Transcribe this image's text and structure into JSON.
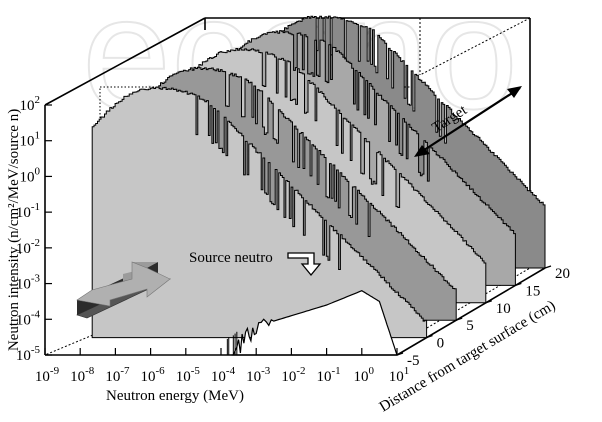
{
  "watermark": "econo",
  "chart_data": {
    "type": "area",
    "title": "",
    "xlabel": "Neutron energy (MeV)",
    "ylabel": "Neutron intensity (n/cm²/MeV/source n)",
    "zlabel": "Distance from target surface (cm)",
    "x_scale": "log",
    "y_scale": "log",
    "x_ticks": [
      {
        "mantissa": "10",
        "exp": "-9"
      },
      {
        "mantissa": "10",
        "exp": "-8"
      },
      {
        "mantissa": "10",
        "exp": "-7"
      },
      {
        "mantissa": "10",
        "exp": "-6"
      },
      {
        "mantissa": "10",
        "exp": "-5"
      },
      {
        "mantissa": "10",
        "exp": "-4"
      },
      {
        "mantissa": "10",
        "exp": "-3"
      },
      {
        "mantissa": "10",
        "exp": "-2"
      },
      {
        "mantissa": "10",
        "exp": "-1"
      },
      {
        "mantissa": "10",
        "exp": "0"
      },
      {
        "mantissa": "10",
        "exp": "1"
      }
    ],
    "y_ticks": [
      {
        "mantissa": "10",
        "exp": "2"
      },
      {
        "mantissa": "10",
        "exp": "1"
      },
      {
        "mantissa": "10",
        "exp": "0"
      },
      {
        "mantissa": "10",
        "exp": "-1"
      },
      {
        "mantissa": "10",
        "exp": "-2"
      },
      {
        "mantissa": "10",
        "exp": "-3"
      },
      {
        "mantissa": "10",
        "exp": "-4"
      },
      {
        "mantissa": "10",
        "exp": "-5"
      }
    ],
    "z_ticks": [
      "-5",
      "0",
      "5",
      "10",
      "15",
      "20"
    ],
    "xlim_exp": [
      -9,
      1
    ],
    "ylim_exp": [
      -5,
      2
    ],
    "zlim": [
      -5,
      20
    ],
    "annotations": [
      {
        "text": "Source neutro",
        "target": "source"
      },
      {
        "text": "Target",
        "target": "target"
      }
    ],
    "series": [
      {
        "z": 0,
        "color": "#c6c6c6",
        "peak_log_e": -6.7,
        "peak_log_i": 2.0,
        "logi_at_10MeV": -4.6
      },
      {
        "z": 5,
        "color": "#989898",
        "peak_log_e": -6.3,
        "peak_log_i": 2.05,
        "logi_at_10MeV": -4.2
      },
      {
        "z": 10,
        "color": "#c6c6c6",
        "peak_log_e": -6.0,
        "peak_log_i": 2.1,
        "logi_at_10MeV": -3.9
      },
      {
        "z": 15,
        "color": "#a8a8a8",
        "peak_log_e": -5.7,
        "peak_log_i": 2.1,
        "logi_at_10MeV": -3.6
      },
      {
        "z": 20,
        "color": "#8a8a8a",
        "peak_log_e": -5.4,
        "peak_log_i": 2.05,
        "logi_at_10MeV": -3.3
      }
    ],
    "source_spectrum": {
      "color": "#ffffff",
      "points": [
        {
          "log_e": -3.7,
          "log_i": -5.0
        },
        {
          "log_e": -3.0,
          "log_i": -4.2
        },
        {
          "log_e": -2.0,
          "log_i": -3.9
        },
        {
          "log_e": -1.0,
          "log_i": -3.6
        },
        {
          "log_e": 0.0,
          "log_i": -3.2
        },
        {
          "log_e": 0.5,
          "log_i": -3.5
        },
        {
          "log_e": 1.0,
          "log_i": -5.0
        }
      ]
    }
  }
}
